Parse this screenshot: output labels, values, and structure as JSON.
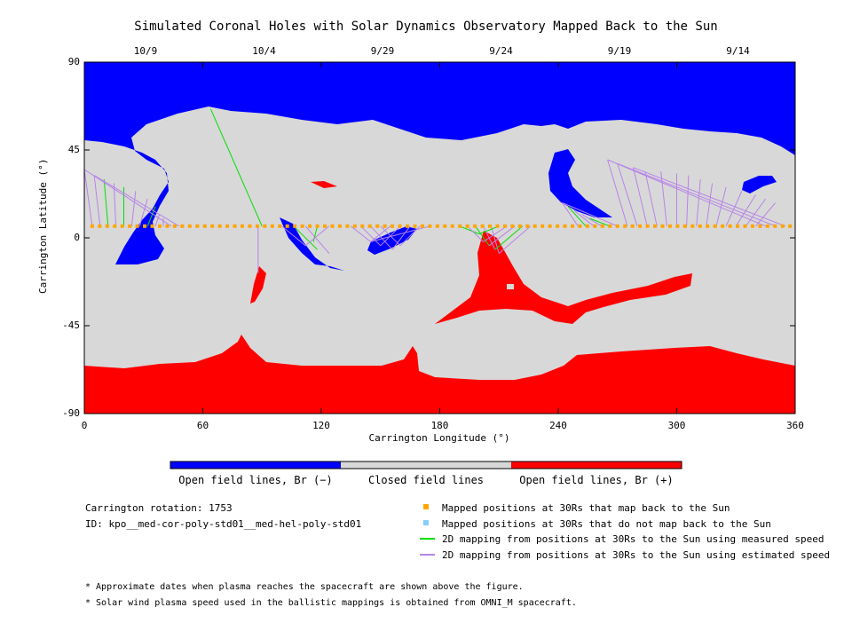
{
  "chart_data": {
    "type": "map",
    "title": "Simulated Coronal Holes with Solar Dynamics Observatory Mapped Back to the Sun",
    "xlabel": "Carrington Longitude (°)",
    "ylabel": "Carrington Latitude (°)",
    "xlim": [
      0,
      360
    ],
    "ylim": [
      -90,
      90
    ],
    "xticks": [
      "0",
      "60",
      "120",
      "180",
      "240",
      "300",
      "360"
    ],
    "yticks": [
      "90",
      "45",
      "0",
      "-45",
      "-90"
    ],
    "date_ticks": [
      {
        "label": "10/9",
        "lon": 31
      },
      {
        "label": "10/4",
        "lon": 91
      },
      {
        "label": "9/29",
        "lon": 151
      },
      {
        "label": "9/24",
        "lon": 211
      },
      {
        "label": "9/19",
        "lon": 271
      },
      {
        "label": "9/14",
        "lon": 331
      }
    ],
    "mapped_track_latitude": 6,
    "mapped_longitudes_start": 4,
    "mapped_longitudes_step": 3.8,
    "mapped_longitudes_end": 358,
    "colors": {
      "open_negative": "#0000ff",
      "closed": "#d8d8d8",
      "open_positive": "#ff0000",
      "mapped_back": "#ffa500",
      "not_mapped": "#87cefa",
      "measured_speed": "#00e000",
      "estimated_speed": "#b784e8"
    }
  },
  "colorbar": {
    "labels": [
      "Open field lines, Br (−)",
      "Closed field lines",
      "Open field lines, Br (+)"
    ]
  },
  "info": {
    "rotation": "Carrington rotation: 1753",
    "id": "ID: kpo__med-cor-poly-std01__med-hel-poly-std01"
  },
  "legend": [
    {
      "label": "Mapped positions at 30Rs that map back to the Sun",
      "kind": "square",
      "color": "#ffa500"
    },
    {
      "label": "Mapped positions at 30Rs that do not map back to the Sun",
      "kind": "square",
      "color": "#87cefa"
    },
    {
      "label": "2D mapping from positions at 30Rs to the Sun using measured speed",
      "kind": "line",
      "color": "#00e000"
    },
    {
      "label": "2D mapping from positions at 30Rs to the Sun using estimated speed",
      "kind": "line",
      "color": "#b784e8"
    }
  ],
  "notes": [
    "* Approximate dates when plasma reaches the spacecraft are shown above the figure.",
    "* Solar wind plasma speed used in the ballistic mappings is obtained from OMNI_M spacecraft."
  ]
}
